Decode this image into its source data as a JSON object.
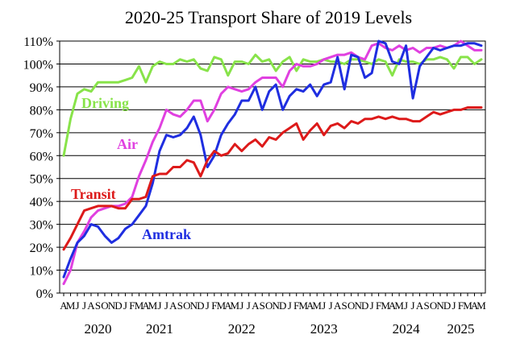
{
  "chart_data": {
    "type": "line",
    "title": "2020-25 Transport Share of 2019 Levels",
    "xlabel": "",
    "ylabel": "",
    "ylim": [
      0,
      110
    ],
    "y_ticks": [
      "0%",
      "10%",
      "20%",
      "30%",
      "40%",
      "50%",
      "60%",
      "70%",
      "80%",
      "90%",
      "100%",
      "110%"
    ],
    "grid": true,
    "month_letters": [
      "A",
      "M",
      "J",
      "J",
      "A",
      "S",
      "O",
      "N",
      "D",
      "J",
      "F",
      "M",
      "A",
      "M",
      "J",
      "J",
      "A",
      "S",
      "O",
      "N",
      "D",
      "J",
      "F",
      "M",
      "A",
      "M",
      "J",
      "J",
      "A",
      "S",
      "O",
      "N",
      "D",
      "J",
      "F",
      "M",
      "A",
      "M",
      "J",
      "J",
      "A",
      "S",
      "O",
      "N",
      "D",
      "J",
      "F",
      "M",
      "A",
      "M",
      "J",
      "J",
      "A",
      "S",
      "O",
      "N",
      "D",
      "J",
      "F",
      "M",
      "A",
      "M"
    ],
    "year_labels": [
      {
        "label": "2020",
        "month_index": 5
      },
      {
        "label": "2021",
        "month_index": 14
      },
      {
        "label": "2022",
        "month_index": 26
      },
      {
        "label": "2023",
        "month_index": 38
      },
      {
        "label": "2024",
        "month_index": 50
      },
      {
        "label": "2025",
        "month_index": 58
      }
    ],
    "series": [
      {
        "name": "Driving",
        "color": "#88e34a",
        "values": [
          60,
          76,
          87,
          89,
          88,
          92,
          92,
          92,
          92,
          93,
          94,
          99,
          92,
          99,
          101,
          100,
          100,
          102,
          101,
          102,
          98,
          97,
          103,
          102,
          95,
          101,
          101,
          100,
          104,
          101,
          102,
          97,
          101,
          103,
          97,
          102,
          101,
          101,
          102,
          101,
          101,
          100,
          102,
          102,
          101,
          100,
          102,
          101,
          95,
          102,
          101,
          101,
          100,
          102,
          102,
          103,
          102,
          98,
          103,
          103,
          100,
          102
        ]
      },
      {
        "name": "Air",
        "color": "#e040e0",
        "values": [
          4,
          10,
          22,
          27,
          33,
          36,
          37,
          38,
          38,
          39,
          42,
          51,
          58,
          66,
          72,
          80,
          78,
          77,
          80,
          84,
          84,
          75,
          80,
          87,
          90,
          89,
          88,
          89,
          92,
          94,
          94,
          94,
          90,
          97,
          100,
          99,
          99,
          100,
          102,
          103,
          104,
          104,
          105,
          103,
          102,
          108,
          109,
          107,
          106,
          108,
          106,
          107,
          105,
          107,
          107,
          108,
          107,
          108,
          110,
          108,
          106,
          106
        ]
      },
      {
        "name": "Amtrak",
        "color": "#1f2ee0",
        "values": [
          7,
          15,
          22,
          25,
          30,
          29,
          25,
          22,
          24,
          28,
          30,
          34,
          38,
          48,
          62,
          69,
          68,
          69,
          72,
          77,
          69,
          55,
          60,
          69,
          74,
          78,
          84,
          84,
          90,
          80,
          88,
          91,
          80,
          86,
          89,
          88,
          91,
          86,
          91,
          92,
          103,
          89,
          104,
          103,
          94,
          96,
          110,
          109,
          101,
          100,
          108,
          85,
          99,
          103,
          107,
          106,
          107,
          108,
          108,
          109,
          109,
          108
        ]
      },
      {
        "name": "Transit",
        "color": "#dd1a1a",
        "values": [
          19,
          24,
          30,
          36,
          37,
          38,
          38,
          38,
          37,
          37,
          41,
          41,
          42,
          51,
          52,
          52,
          55,
          55,
          58,
          57,
          51,
          58,
          62,
          60,
          61,
          65,
          62,
          65,
          67,
          64,
          68,
          67,
          70,
          72,
          74,
          67,
          71,
          74,
          69,
          73,
          74,
          72,
          75,
          74,
          76,
          76,
          77,
          76,
          77,
          76,
          76,
          75,
          75,
          77,
          79,
          78,
          79,
          80,
          80,
          81,
          81,
          81
        ]
      }
    ],
    "annotations": [
      {
        "text": "Driving",
        "color": "#88e34a"
      },
      {
        "text": "Air",
        "color": "#e040e0"
      },
      {
        "text": "Transit",
        "color": "#dd1a1a"
      },
      {
        "text": "Amtrak",
        "color": "#1f2ee0"
      }
    ]
  }
}
